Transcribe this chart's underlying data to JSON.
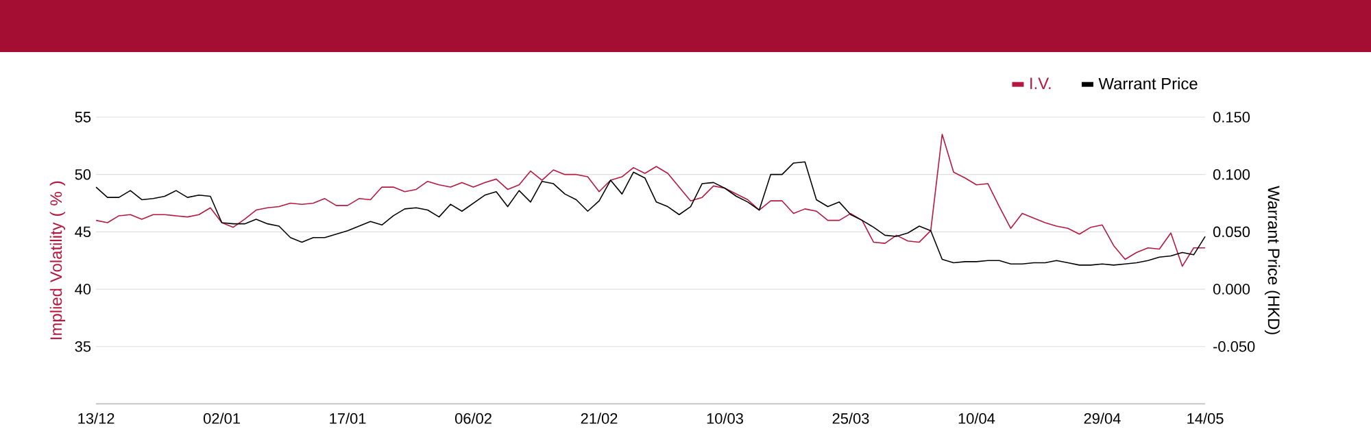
{
  "chart_data": {
    "type": "line",
    "categories": [
      "13/12",
      null,
      null,
      null,
      null,
      null,
      null,
      null,
      null,
      null,
      null,
      "02/01",
      null,
      null,
      null,
      null,
      null,
      null,
      null,
      null,
      null,
      null,
      "17/01",
      null,
      null,
      null,
      null,
      null,
      null,
      null,
      null,
      null,
      null,
      "06/02",
      null,
      null,
      null,
      null,
      null,
      null,
      null,
      null,
      null,
      null,
      "21/02",
      null,
      null,
      null,
      null,
      null,
      null,
      null,
      null,
      null,
      null,
      "10/03",
      null,
      null,
      null,
      null,
      null,
      null,
      null,
      null,
      null,
      null,
      "25/03",
      null,
      null,
      null,
      null,
      null,
      null,
      null,
      null,
      null,
      null,
      "10/04",
      null,
      null,
      null,
      null,
      null,
      null,
      null,
      null,
      null,
      null,
      "29/04",
      null,
      null,
      null,
      null,
      null,
      null,
      null,
      null,
      "14/05"
    ],
    "series": [
      {
        "name": "I.V.",
        "color": "#b5173f",
        "values": [
          46.0,
          45.8,
          46.4,
          46.5,
          46.1,
          46.5,
          46.5,
          46.4,
          46.3,
          46.5,
          47.1,
          45.8,
          45.4,
          46.1,
          46.9,
          47.1,
          47.2,
          47.5,
          47.4,
          47.5,
          47.9,
          47.3,
          47.3,
          47.9,
          47.8,
          48.9,
          48.9,
          48.5,
          48.7,
          49.4,
          49.1,
          48.9,
          49.3,
          48.9,
          49.3,
          49.6,
          48.7,
          49.1,
          50.3,
          49.5,
          50.4,
          50.0,
          50.0,
          49.8,
          48.5,
          49.5,
          49.8,
          50.6,
          50.1,
          50.7,
          50.1,
          48.9,
          47.7,
          48.0,
          49.0,
          48.8,
          48.3,
          47.8,
          46.9,
          47.7,
          47.7,
          46.6,
          47.0,
          46.8,
          46.0,
          46.0,
          46.6,
          46.0,
          44.1,
          44.0,
          44.7,
          44.2,
          44.1,
          45.1,
          53.5,
          50.2,
          49.7,
          49.1,
          49.2,
          47.2,
          45.3,
          46.6,
          46.2,
          45.8,
          45.5,
          45.3,
          44.8,
          45.4,
          45.6,
          43.8,
          42.6,
          43.2,
          43.6,
          43.5,
          44.9,
          42.0,
          43.6,
          43.6
        ]
      },
      {
        "name": "Warrant Price",
        "color": "#000000",
        "axis": "y2",
        "values": [
          0.089,
          0.08,
          0.08,
          0.086,
          0.078,
          0.079,
          0.081,
          0.086,
          0.08,
          0.082,
          0.081,
          0.058,
          0.057,
          0.057,
          0.061,
          0.057,
          0.055,
          0.045,
          0.041,
          0.045,
          0.045,
          0.048,
          0.051,
          0.055,
          0.059,
          0.056,
          0.064,
          0.07,
          0.071,
          0.069,
          0.063,
          0.074,
          0.068,
          0.075,
          0.082,
          0.085,
          0.072,
          0.086,
          0.076,
          0.094,
          0.092,
          0.083,
          0.078,
          0.068,
          0.077,
          0.095,
          0.083,
          0.102,
          0.097,
          0.076,
          0.072,
          0.065,
          0.072,
          0.092,
          0.093,
          0.088,
          0.081,
          0.076,
          0.069,
          0.1,
          0.1,
          0.11,
          0.111,
          0.078,
          0.072,
          0.076,
          0.065,
          0.06,
          0.054,
          0.047,
          0.046,
          0.049,
          0.055,
          0.051,
          0.026,
          0.023,
          0.024,
          0.024,
          0.025,
          0.025,
          0.022,
          0.022,
          0.023,
          0.023,
          0.025,
          0.023,
          0.021,
          0.021,
          0.022,
          0.021,
          0.022,
          0.023,
          0.025,
          0.028,
          0.029,
          0.032,
          0.03,
          0.046
        ]
      }
    ],
    "ylabel": "Implied Volatility ( % )",
    "y2label": "Warrant Price (HKD)",
    "ylim": [
      30,
      55
    ],
    "yticks": [
      35,
      40,
      45,
      50,
      55
    ],
    "y2lim": [
      -0.1,
      0.15
    ],
    "y2ticks": [
      {
        "value": -0.05,
        "label": "-0.050"
      },
      {
        "value": 0,
        "label": "0.000"
      },
      {
        "value": 0.05,
        "label": "0.050"
      },
      {
        "value": 0.1,
        "label": "0.100"
      },
      {
        "value": 0.15,
        "label": "0.150"
      }
    ],
    "grid": "y",
    "legend": "top right",
    "marker": "none",
    "line_style": "solid"
  }
}
